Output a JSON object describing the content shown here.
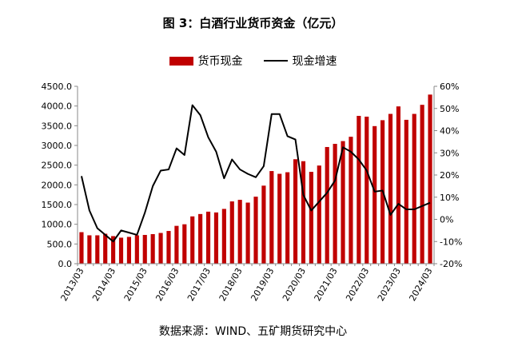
{
  "chart_data": {
    "type": "bar",
    "title": "图 3：白酒行业货币资金（亿元）",
    "source": "数据来源：WIND、五矿期货研究中心",
    "legend_position": "top",
    "grid": false,
    "colors": {
      "bar": "#C00000",
      "line": "#000000"
    },
    "x": [
      "2013/03",
      "2013/06",
      "2013/09",
      "2013/12",
      "2014/03",
      "2014/06",
      "2014/09",
      "2014/12",
      "2015/03",
      "2015/06",
      "2015/09",
      "2015/12",
      "2016/03",
      "2016/06",
      "2016/09",
      "2016/12",
      "2017/03",
      "2017/06",
      "2017/09",
      "2017/12",
      "2018/03",
      "2018/06",
      "2018/09",
      "2018/12",
      "2019/03",
      "2019/06",
      "2019/09",
      "2019/12",
      "2020/03",
      "2020/06",
      "2020/09",
      "2020/12",
      "2021/03",
      "2021/06",
      "2021/09",
      "2021/12",
      "2022/03",
      "2022/06",
      "2022/09",
      "2022/12",
      "2023/03",
      "2023/06",
      "2023/09",
      "2023/12",
      "2024/03"
    ],
    "x_tick_labels": [
      "2013/03",
      "2014/03",
      "2015/03",
      "2016/03",
      "2017/03",
      "2018/03",
      "2019/03",
      "2020/03",
      "2021/03",
      "2022/03",
      "2023/03",
      "2024/03"
    ],
    "ylim_left": [
      0,
      4500
    ],
    "yticks_left": [
      "0.0",
      "500.0",
      "1000.0",
      "1500.0",
      "2000.0",
      "2500.0",
      "3000.0",
      "3500.0",
      "4000.0",
      "4500.0"
    ],
    "ylim_right": [
      -20,
      60
    ],
    "yticks_right": [
      "-20%",
      "-10%",
      "0%",
      "10%",
      "20%",
      "30%",
      "40%",
      "50%",
      "60%"
    ],
    "series": [
      {
        "name": "货币现金",
        "type": "bar",
        "axis": "left",
        "values": [
          800,
          720,
          720,
          760,
          700,
          660,
          680,
          720,
          730,
          750,
          780,
          830,
          960,
          1000,
          1200,
          1260,
          1320,
          1300,
          1390,
          1580,
          1620,
          1550,
          1700,
          1980,
          2350,
          2280,
          2320,
          2650,
          2600,
          2330,
          2490,
          2960,
          3040,
          3110,
          3220,
          3750,
          3730,
          3490,
          3640,
          3800,
          3990,
          3650,
          3800,
          4030,
          4290
        ]
      },
      {
        "name": "现金增速",
        "type": "line",
        "axis": "right",
        "values": [
          19.5,
          4,
          -4,
          -7,
          -10,
          -5,
          -6,
          -7,
          3,
          15,
          22,
          22.5,
          32,
          29,
          51.5,
          47,
          37,
          30.5,
          18.5,
          27,
          22.5,
          20.5,
          19,
          24,
          47.5,
          47.5,
          37.5,
          36,
          11,
          4,
          8,
          12,
          17.5,
          32.5,
          30.5,
          27,
          22,
          12.5,
          13,
          2,
          7,
          4.5,
          4.5,
          6,
          7.5
        ]
      }
    ]
  }
}
